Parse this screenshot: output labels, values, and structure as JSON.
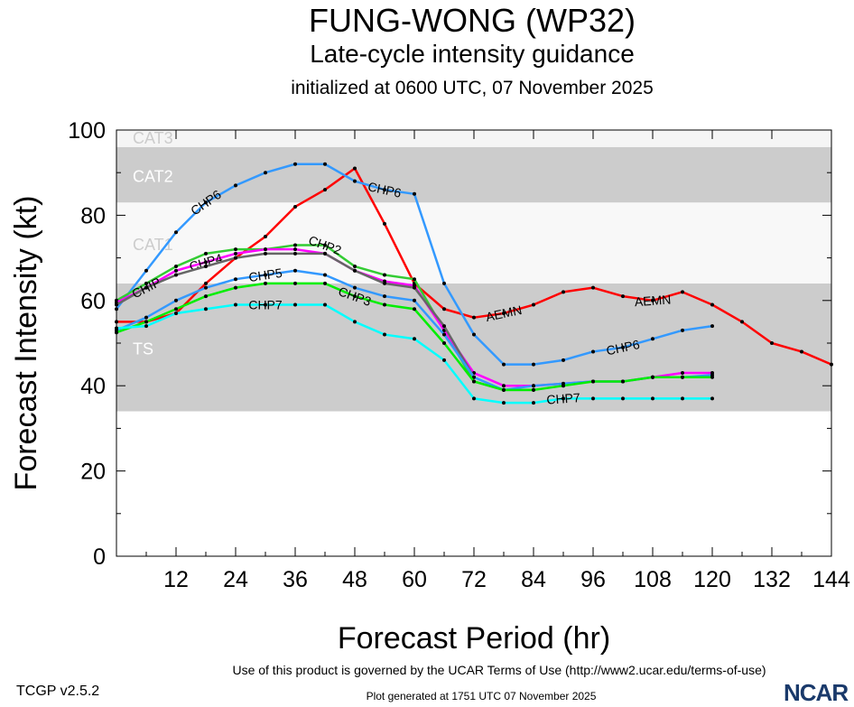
{
  "title": "FUNG-WONG (WP32)",
  "subtitle": "Late-cycle intensity guidance",
  "init": "initialized at 0600 UTC, 07 November 2025",
  "footer": {
    "terms": "Use of this product is governed by the UCAR Terms of Use (http://www2.ucar.edu/terms-of-use)",
    "generated": "Plot generated at 1751 UTC   07 November 2025",
    "version": "TCGP v2.5.2",
    "logo": "NCAR"
  },
  "chart_data": {
    "type": "line",
    "xlabel": "Forecast Period (hr)",
    "ylabel": "Forecast Intensity (kt)",
    "xlim": [
      0,
      144
    ],
    "ylim": [
      0,
      100
    ],
    "xticks": [
      12,
      24,
      36,
      48,
      60,
      72,
      84,
      96,
      108,
      120,
      132,
      144
    ],
    "yticks": [
      0,
      20,
      40,
      60,
      80,
      100
    ],
    "grid": false,
    "bands": [
      {
        "name": "TS",
        "range": [
          34,
          64
        ],
        "color": "#cccccc"
      },
      {
        "name": "CAT1",
        "range": [
          64,
          83
        ],
        "color": "#f8f8f8"
      },
      {
        "name": "CAT2",
        "range": [
          83,
          96
        ],
        "color": "#cccccc"
      },
      {
        "name": "CAT3",
        "range": [
          96,
          100
        ],
        "color": "#f5f5f5"
      }
    ],
    "series": [
      {
        "name": "AEMN",
        "color": "#ff0000",
        "x": [
          0,
          6,
          12,
          18,
          24,
          30,
          36,
          42,
          48,
          54,
          60,
          66,
          72,
          78,
          84,
          90,
          96,
          102,
          108,
          114,
          120,
          126,
          132,
          138,
          144
        ],
        "values": [
          55,
          55,
          57,
          64,
          70,
          75,
          82,
          86,
          91,
          78,
          64,
          58,
          56,
          57,
          59,
          62,
          63,
          61,
          60,
          62,
          59,
          55,
          50,
          48,
          45
        ]
      },
      {
        "name": "CHP6",
        "color": "#3399ff",
        "x": [
          0,
          6,
          12,
          18,
          24,
          30,
          36,
          42,
          48,
          54,
          60,
          66,
          72,
          78,
          84,
          90,
          96,
          102,
          108,
          114,
          120
        ],
        "values": [
          58,
          67,
          76,
          83,
          87,
          90,
          92,
          92,
          88,
          86,
          85,
          64,
          52,
          45,
          45,
          46,
          48,
          49,
          51,
          53,
          54
        ]
      },
      {
        "name": "CHP2",
        "color": "#33cc33",
        "x": [
          0,
          6,
          12,
          18,
          24,
          30,
          36,
          42,
          48,
          54,
          60,
          66,
          72,
          78,
          84
        ],
        "values": [
          60,
          64,
          68,
          71,
          72,
          72,
          73,
          73,
          68,
          66,
          65,
          53,
          41,
          39,
          39
        ]
      },
      {
        "name": "CHP4",
        "color": "#ff00ff",
        "x": [
          0,
          6,
          12,
          18,
          24,
          30,
          36,
          42,
          48,
          54,
          60,
          66,
          72,
          78,
          84,
          90,
          96,
          102,
          108,
          114,
          120
        ],
        "values": [
          59.5,
          63,
          67,
          69,
          71,
          72,
          72,
          71,
          67,
          64.5,
          63.5,
          53,
          43,
          40,
          40,
          40.5,
          41,
          41,
          42,
          43,
          43
        ]
      },
      {
        "name": "CHIP",
        "color": "#666666",
        "x": [
          0,
          6,
          12,
          18,
          24,
          30,
          36,
          42,
          48,
          54,
          60,
          66,
          72
        ],
        "values": [
          59,
          63,
          66,
          68,
          70,
          71,
          71,
          71,
          67,
          64,
          63,
          54,
          42
        ]
      },
      {
        "name": "CHP5",
        "color": "#3399ff",
        "x": [
          0,
          6,
          12,
          18,
          24,
          30,
          36,
          42,
          48,
          54,
          60,
          66,
          72,
          78,
          84,
          90,
          96,
          102,
          108,
          114,
          120
        ],
        "values": [
          53,
          56,
          60,
          63,
          65,
          66,
          67,
          66,
          63,
          61,
          60,
          52,
          42,
          39,
          40,
          40.5,
          41,
          41,
          42,
          42,
          42.5
        ]
      },
      {
        "name": "CHP3",
        "color": "#00ee00",
        "x": [
          0,
          6,
          12,
          18,
          24,
          30,
          36,
          42,
          48,
          54,
          60,
          66,
          72,
          78,
          84,
          90,
          96,
          102,
          108,
          114,
          120
        ],
        "values": [
          52.5,
          55,
          58,
          61,
          63,
          64,
          64,
          64,
          61,
          59,
          58,
          50,
          41,
          39,
          39,
          40,
          41,
          41,
          42,
          42,
          42
        ]
      },
      {
        "name": "CHP7",
        "color": "#00ffff",
        "x": [
          0,
          6,
          12,
          18,
          24,
          30,
          36,
          42,
          48,
          54,
          60,
          66,
          72,
          78,
          84,
          90,
          96,
          102,
          108,
          114,
          120
        ],
        "values": [
          53.5,
          54,
          57,
          58,
          59,
          59,
          59,
          59,
          55,
          52,
          51,
          46,
          37,
          36,
          36,
          37,
          37,
          37,
          37,
          37,
          37
        ]
      }
    ]
  }
}
